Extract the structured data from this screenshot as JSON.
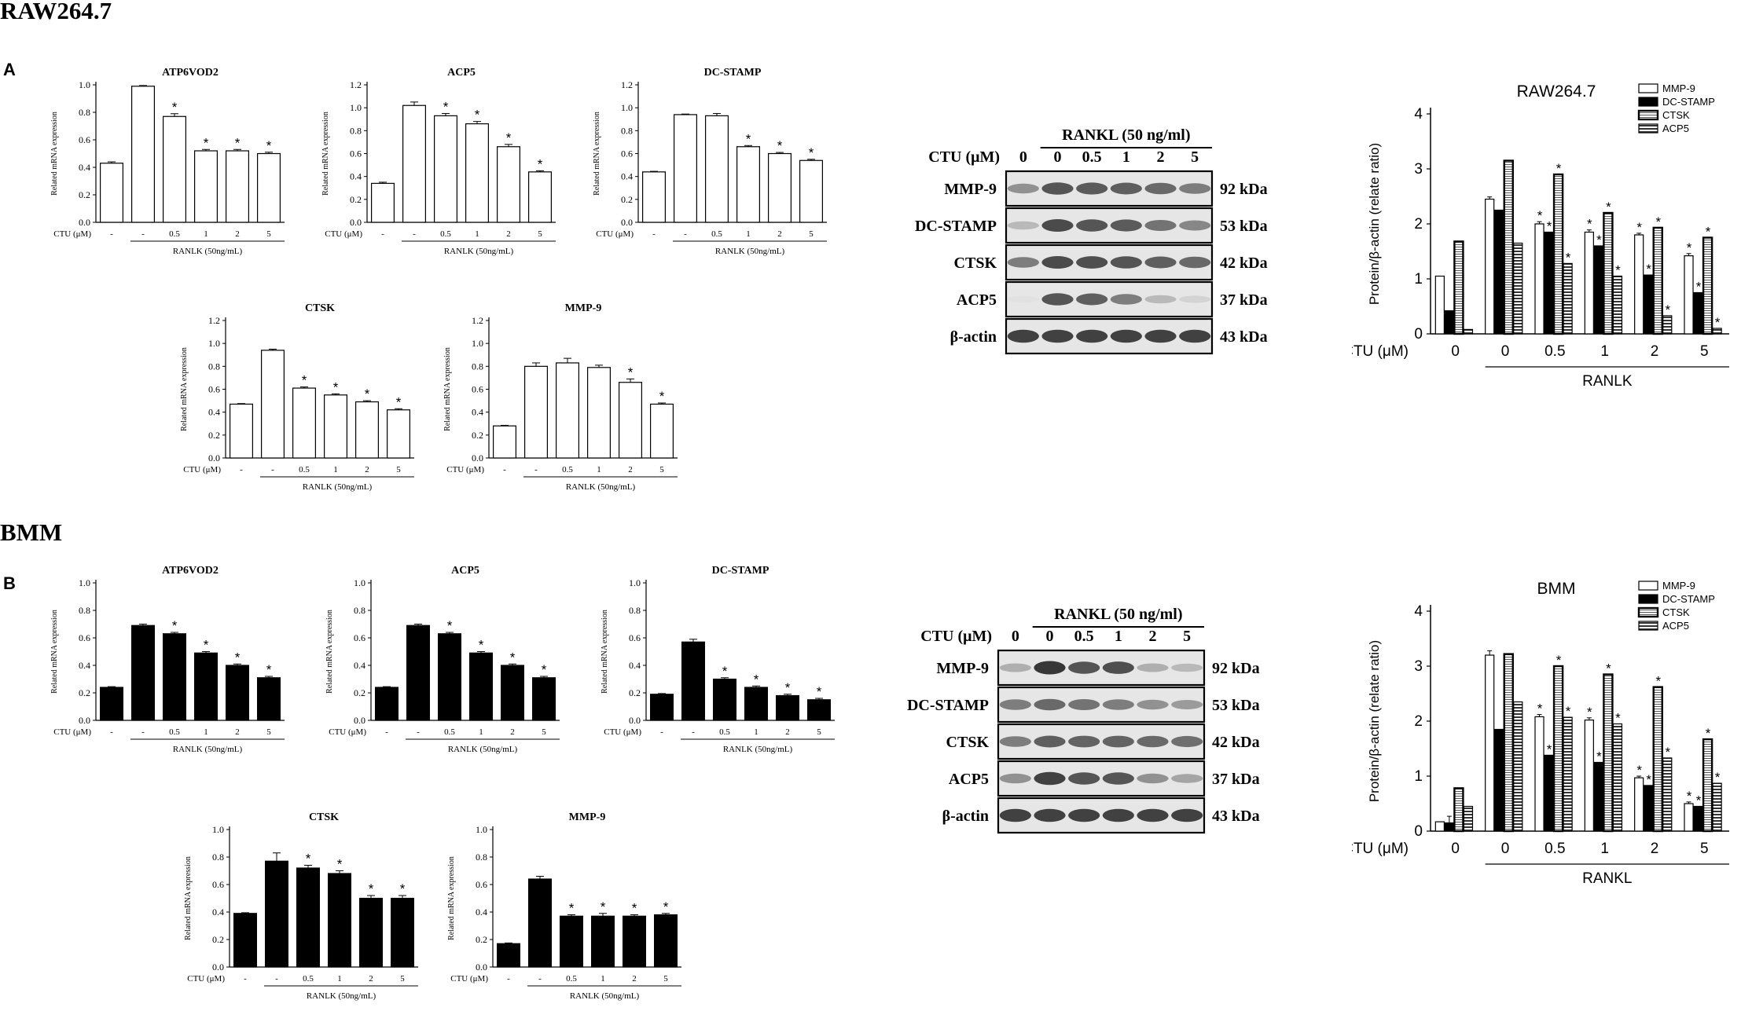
{
  "sections": {
    "raw": {
      "title": "RAW264.7",
      "letter": "A"
    },
    "bmm": {
      "title": "BMM",
      "letter": "B"
    }
  },
  "common": {
    "ylabel": "Related mRNA expression",
    "ctu": "CTU (μM)",
    "categories": [
      "-",
      "-",
      "0.5",
      "1",
      "2",
      "5"
    ],
    "rankl": "RANLK (50ng/mL)"
  },
  "chart_data": [
    {
      "id": "A-ATP6VOD2",
      "type": "bar",
      "title": "ATP6VOD2",
      "ylabel": "Related mRNA expression",
      "ylim": [
        0,
        1.0
      ],
      "ticks": [
        "0.0",
        "0.2",
        "0.4",
        "0.6",
        "0.8",
        "1.0"
      ],
      "fill": "#ffffff",
      "categories": [
        "-",
        "-",
        "0.5",
        "1",
        "2",
        "5"
      ],
      "values": [
        0.43,
        0.99,
        0.77,
        0.52,
        0.52,
        0.5
      ],
      "errors": [
        0.01,
        0.005,
        0.02,
        0.01,
        0.01,
        0.01
      ],
      "sig": [
        "",
        "",
        "*",
        "*",
        "*",
        "*"
      ],
      "xgroup": "RANLK (50ng/mL)"
    },
    {
      "id": "A-ACP5",
      "type": "bar",
      "title": "ACP5",
      "ylabel": "Related mRNA expression",
      "ylim": [
        0,
        1.2
      ],
      "ticks": [
        "0.0",
        "0.2",
        "0.4",
        "0.6",
        "0.8",
        "1.0",
        "1.2"
      ],
      "fill": "#ffffff",
      "categories": [
        "-",
        "-",
        "0.5",
        "1",
        "2",
        "5"
      ],
      "values": [
        0.34,
        1.02,
        0.93,
        0.86,
        0.66,
        0.44
      ],
      "errors": [
        0.01,
        0.03,
        0.02,
        0.02,
        0.02,
        0.01
      ],
      "sig": [
        "",
        "",
        "*",
        "*",
        "*",
        "*"
      ],
      "xgroup": "RANLK (50ng/mL)"
    },
    {
      "id": "A-DC-STAMP",
      "type": "bar",
      "title": "DC-STAMP",
      "ylabel": "Related mRNA expression",
      "ylim": [
        0,
        1.2
      ],
      "ticks": [
        "0.0",
        "0.2",
        "0.4",
        "0.6",
        "0.8",
        "1.0",
        "1.2"
      ],
      "fill": "#ffffff",
      "categories": [
        "-",
        "-",
        "0.5",
        "1",
        "2",
        "5"
      ],
      "values": [
        0.44,
        0.94,
        0.93,
        0.66,
        0.6,
        0.54
      ],
      "errors": [
        0.005,
        0.005,
        0.02,
        0.01,
        0.01,
        0.01
      ],
      "sig": [
        "",
        "",
        "",
        "*",
        "*",
        "*"
      ],
      "xgroup": "RANLK (50ng/mL)"
    },
    {
      "id": "A-CTSK",
      "type": "bar",
      "title": "CTSK",
      "ylabel": "Related mRNA expression",
      "ylim": [
        0,
        1.2
      ],
      "ticks": [
        "0.0",
        "0.2",
        "0.4",
        "0.6",
        "0.8",
        "1.0",
        "1.2"
      ],
      "fill": "#ffffff",
      "categories": [
        "-",
        "-",
        "0.5",
        "1",
        "2",
        "5"
      ],
      "values": [
        0.47,
        0.94,
        0.61,
        0.55,
        0.49,
        0.42
      ],
      "errors": [
        0.005,
        0.01,
        0.01,
        0.01,
        0.01,
        0.01
      ],
      "sig": [
        "",
        "",
        "*",
        "*",
        "*",
        "*"
      ],
      "xgroup": "RANLK (50ng/mL)"
    },
    {
      "id": "A-MMP-9",
      "type": "bar",
      "title": "MMP-9",
      "ylabel": "Related mRNA expression",
      "ylim": [
        0,
        1.2
      ],
      "ticks": [
        "0.0",
        "0.2",
        "0.4",
        "0.6",
        "0.8",
        "1.0",
        "1.2"
      ],
      "fill": "#ffffff",
      "categories": [
        "-",
        "-",
        "0.5",
        "1",
        "2",
        "5"
      ],
      "values": [
        0.28,
        0.8,
        0.83,
        0.79,
        0.66,
        0.47
      ],
      "errors": [
        0.005,
        0.03,
        0.04,
        0.02,
        0.03,
        0.01
      ],
      "sig": [
        "",
        "",
        "",
        "",
        "*",
        "*"
      ],
      "xgroup": "RANLK (50ng/mL)"
    },
    {
      "id": "B-ATP6VOD2",
      "type": "bar",
      "title": "ATP6VOD2",
      "ylabel": "Related mRNA expression",
      "ylim": [
        0,
        1.0
      ],
      "ticks": [
        "0.0",
        "0.2",
        "0.4",
        "0.6",
        "0.8",
        "1.0"
      ],
      "fill": "#000000",
      "categories": [
        "-",
        "-",
        "0.5",
        "1",
        "2",
        "5"
      ],
      "values": [
        0.24,
        0.69,
        0.63,
        0.49,
        0.4,
        0.31
      ],
      "errors": [
        0.005,
        0.01,
        0.01,
        0.01,
        0.01,
        0.01
      ],
      "sig": [
        "",
        "",
        "*",
        "*",
        "*",
        "*"
      ],
      "xgroup": "RANLK (50ng/mL)"
    },
    {
      "id": "B-ACP5",
      "type": "bar",
      "title": "ACP5",
      "ylabel": "Related mRNA expression",
      "ylim": [
        0,
        1.0
      ],
      "ticks": [
        "0.0",
        "0.2",
        "0.4",
        "0.6",
        "0.8",
        "1.0"
      ],
      "fill": "#000000",
      "categories": [
        "-",
        "-",
        "0.5",
        "1",
        "2",
        "5"
      ],
      "values": [
        0.24,
        0.69,
        0.63,
        0.49,
        0.4,
        0.31
      ],
      "errors": [
        0.005,
        0.01,
        0.01,
        0.01,
        0.01,
        0.01
      ],
      "sig": [
        "",
        "",
        "*",
        "*",
        "*",
        "*"
      ],
      "xgroup": "RANLK (50ng/mL)"
    },
    {
      "id": "B-DC-STAMP",
      "type": "bar",
      "title": "DC-STAMP",
      "ylabel": "Related mRNA expression",
      "ylim": [
        0,
        1.0
      ],
      "ticks": [
        "0.0",
        "0.2",
        "0.4",
        "0.6",
        "0.8",
        "1.0"
      ],
      "fill": "#000000",
      "categories": [
        "-",
        "-",
        "0.5",
        "1",
        "2",
        "5"
      ],
      "values": [
        0.19,
        0.57,
        0.3,
        0.24,
        0.18,
        0.15
      ],
      "errors": [
        0.005,
        0.02,
        0.01,
        0.01,
        0.01,
        0.01
      ],
      "sig": [
        "",
        "",
        "*",
        "*",
        "*",
        "*"
      ],
      "xgroup": "RANLK (50ng/mL)"
    },
    {
      "id": "B-CTSK",
      "type": "bar",
      "title": "CTSK",
      "ylabel": "Related mRNA expression",
      "ylim": [
        0,
        1.0
      ],
      "ticks": [
        "0.0",
        "0.2",
        "0.4",
        "0.6",
        "0.8",
        "1.0"
      ],
      "fill": "#000000",
      "categories": [
        "-",
        "-",
        "0.5",
        "1",
        "2",
        "5"
      ],
      "values": [
        0.39,
        0.77,
        0.72,
        0.68,
        0.5,
        0.5
      ],
      "errors": [
        0.005,
        0.06,
        0.02,
        0.02,
        0.02,
        0.02
      ],
      "sig": [
        "",
        "",
        "*",
        "*",
        "*",
        "*"
      ],
      "xgroup": "RANLK (50ng/mL)"
    },
    {
      "id": "B-MMP-9",
      "type": "bar",
      "title": "MMP-9",
      "ylabel": "Related mRNA expression",
      "ylim": [
        0,
        1.0
      ],
      "ticks": [
        "0.0",
        "0.2",
        "0.4",
        "0.6",
        "0.8",
        "1.0"
      ],
      "fill": "#000000",
      "categories": [
        "-",
        "-",
        "0.5",
        "1",
        "2",
        "5"
      ],
      "values": [
        0.17,
        0.64,
        0.37,
        0.37,
        0.37,
        0.38
      ],
      "errors": [
        0.005,
        0.02,
        0.01,
        0.02,
        0.01,
        0.01
      ],
      "sig": [
        "",
        "",
        "*",
        "*",
        "*",
        "*"
      ],
      "xgroup": "RANLK (50ng/mL)"
    },
    {
      "id": "A-densitometry",
      "type": "bar",
      "title": "RAW264.7",
      "ylabel": "Protein/β-actin (relate ratio)",
      "ylim": [
        0,
        4
      ],
      "ticks": [
        "0",
        "1",
        "2",
        "3",
        "4"
      ],
      "categories": [
        "0",
        "0",
        "0.5",
        "1",
        "2",
        "5"
      ],
      "xgroup": "RANLK",
      "series": [
        {
          "name": "MMP-9",
          "values": [
            1.05,
            2.45,
            2.0,
            1.85,
            1.8,
            1.42
          ],
          "errors": [
            0,
            0.04,
            0.04,
            0.04,
            0.03,
            0.04
          ],
          "sig": [
            "",
            "",
            "*",
            "*",
            "*",
            "*"
          ]
        },
        {
          "name": "DC-STAMP",
          "values": [
            0.42,
            2.25,
            1.85,
            1.6,
            1.07,
            0.75
          ],
          "errors": [
            0,
            0,
            0,
            0,
            0,
            0
          ],
          "sig": [
            "",
            "",
            "*",
            "*",
            "*",
            "*"
          ]
        },
        {
          "name": "CTSK",
          "values": [
            1.68,
            3.15,
            2.9,
            2.2,
            1.93,
            1.75
          ],
          "errors": [
            0,
            0,
            0,
            0,
            0,
            0
          ],
          "sig": [
            "",
            "",
            "*",
            "*",
            "*",
            "*"
          ]
        },
        {
          "name": "ACP5",
          "values": [
            0.08,
            1.65,
            1.28,
            1.05,
            0.33,
            0.1
          ],
          "errors": [
            0,
            0,
            0,
            0,
            0,
            0
          ],
          "sig": [
            "",
            "",
            "*",
            "*",
            "*",
            "*"
          ]
        }
      ]
    },
    {
      "id": "B-densitometry",
      "type": "bar",
      "title": "BMM",
      "ylabel": "Protein/β-actin (relate ratio)",
      "ylim": [
        0,
        4
      ],
      "ticks": [
        "0",
        "1",
        "2",
        "3",
        "4"
      ],
      "categories": [
        "0",
        "0",
        "0.5",
        "1",
        "2",
        "5"
      ],
      "xgroup": "RANKL",
      "series": [
        {
          "name": "MMP-9",
          "values": [
            0.17,
            3.2,
            2.08,
            2.02,
            0.97,
            0.5
          ],
          "errors": [
            0,
            0.08,
            0.04,
            0.04,
            0.03,
            0.03
          ],
          "sig": [
            "",
            "",
            "*",
            "*",
            "*",
            "*"
          ]
        },
        {
          "name": "DC-STAMP",
          "values": [
            0.15,
            1.85,
            1.38,
            1.25,
            0.83,
            0.45
          ],
          "errors": [
            0.12,
            0,
            0,
            0,
            0,
            0
          ],
          "sig": [
            "",
            "",
            "*",
            "*",
            "*",
            "*"
          ]
        },
        {
          "name": "CTSK",
          "values": [
            0.78,
            3.22,
            3.0,
            2.85,
            2.62,
            1.67
          ],
          "errors": [
            0,
            0,
            0,
            0,
            0,
            0
          ],
          "sig": [
            "",
            "",
            "*",
            "*",
            "*",
            "*"
          ]
        },
        {
          "name": "ACP5",
          "values": [
            0.45,
            2.35,
            2.07,
            1.95,
            1.33,
            0.87
          ],
          "errors": [
            0,
            0,
            0,
            0,
            0,
            0
          ],
          "sig": [
            "",
            "",
            "*",
            "*",
            "*",
            "*"
          ]
        }
      ]
    }
  ],
  "blots": [
    {
      "id": "A-blot",
      "rankl": "RANKL (50 ng/ml)",
      "ctu_label": "CTU (μM)",
      "doses": [
        "0",
        "0",
        "0.5",
        "1",
        "2",
        "5"
      ],
      "rows": [
        {
          "protein": "MMP-9",
          "kda": "92 kDa",
          "intensity": [
            0.45,
            0.75,
            0.72,
            0.7,
            0.65,
            0.55
          ]
        },
        {
          "protein": "DC-STAMP",
          "kda": "53 kDa",
          "intensity": [
            0.25,
            0.8,
            0.75,
            0.72,
            0.6,
            0.5
          ]
        },
        {
          "protein": "CTSK",
          "kda": "42 kDa",
          "intensity": [
            0.55,
            0.8,
            0.78,
            0.75,
            0.7,
            0.65
          ]
        },
        {
          "protein": "ACP5",
          "kda": "37 kDa",
          "intensity": [
            0.05,
            0.75,
            0.7,
            0.55,
            0.25,
            0.12
          ]
        },
        {
          "protein": "β-actin",
          "kda": "43 kDa",
          "intensity": [
            0.85,
            0.85,
            0.85,
            0.85,
            0.85,
            0.85
          ]
        }
      ]
    },
    {
      "id": "B-blot",
      "rankl": "RANKL (50 ng/ml)",
      "ctu_label": "CTU (μM)",
      "doses": [
        "0",
        "0",
        "0.5",
        "1",
        "2",
        "5"
      ],
      "rows": [
        {
          "protein": "MMP-9",
          "kda": "92 kDa",
          "intensity": [
            0.3,
            0.9,
            0.75,
            0.78,
            0.3,
            0.25
          ]
        },
        {
          "protein": "DC-STAMP",
          "kda": "53 kDa",
          "intensity": [
            0.55,
            0.65,
            0.6,
            0.55,
            0.45,
            0.4
          ]
        },
        {
          "protein": "CTSK",
          "kda": "42 kDa",
          "intensity": [
            0.55,
            0.7,
            0.68,
            0.68,
            0.65,
            0.62
          ]
        },
        {
          "protein": "ACP5",
          "kda": "37 kDa",
          "intensity": [
            0.45,
            0.85,
            0.75,
            0.75,
            0.45,
            0.35
          ]
        },
        {
          "protein": "β-actin",
          "kda": "43 kDa",
          "intensity": [
            0.85,
            0.85,
            0.85,
            0.85,
            0.85,
            0.85
          ]
        }
      ]
    }
  ],
  "legend_styles": {
    "MMP-9": "#ffffff",
    "DC-STAMP": "#000000",
    "CTSK": "#ffffff",
    "ACP5": "#7a7a7a"
  }
}
